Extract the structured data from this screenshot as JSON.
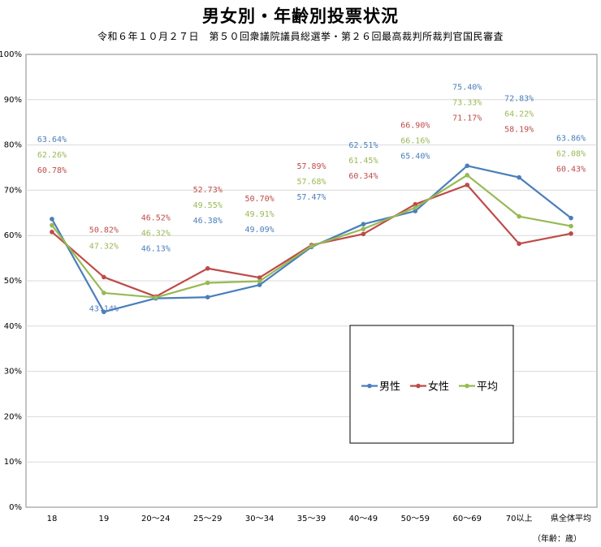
{
  "title": "男女別・年齢別投票状況",
  "subtitle": "令和６年１０月２７日　第５０回衆議院議員総選挙・第２６回最高裁判所裁判官国民審査",
  "unit_label": "（年齢：歳）",
  "chart_data": {
    "type": "line",
    "categories": [
      "18",
      "19",
      "20～24",
      "25～29",
      "30～34",
      "35～39",
      "40～49",
      "50～59",
      "60～69",
      "70以上",
      "県全体平均"
    ],
    "ylim": [
      0,
      100
    ],
    "yticks": [
      "0%",
      "10%",
      "20%",
      "30%",
      "40%",
      "50%",
      "60%",
      "70%",
      "80%",
      "90%",
      "100%"
    ],
    "grid": true,
    "legend_position": "lower-right",
    "series": [
      {
        "name": "男性",
        "color": "#4a7ebb",
        "values": [
          63.64,
          43.14,
          46.13,
          46.38,
          49.09,
          57.47,
          62.51,
          65.4,
          75.4,
          72.83,
          63.86
        ],
        "labels": [
          "63.64%",
          "43.14%",
          "46.13%",
          "46.38%",
          "49.09%",
          "57.47%",
          "62.51%",
          "65.40%",
          "75.40%",
          "72.83%",
          "63.86%"
        ]
      },
      {
        "name": "女性",
        "color": "#be4b48",
        "values": [
          60.78,
          50.82,
          46.52,
          52.73,
          50.7,
          57.89,
          60.34,
          66.9,
          71.17,
          58.19,
          60.43
        ],
        "labels": [
          "60.78%",
          "50.82%",
          "46.52%",
          "52.73%",
          "50.70%",
          "57.89%",
          "60.34%",
          "66.90%",
          "71.17%",
          "58.19%",
          "60.43%"
        ]
      },
      {
        "name": "平均",
        "color": "#98b954",
        "values": [
          62.26,
          47.32,
          46.32,
          49.55,
          49.91,
          57.68,
          61.45,
          66.16,
          73.33,
          64.22,
          62.08
        ],
        "labels": [
          "62.26%",
          "47.32%",
          "46.32%",
          "49.55%",
          "49.91%",
          "57.68%",
          "61.45%",
          "66.16%",
          "73.33%",
          "64.22%",
          "62.08%"
        ]
      }
    ]
  }
}
